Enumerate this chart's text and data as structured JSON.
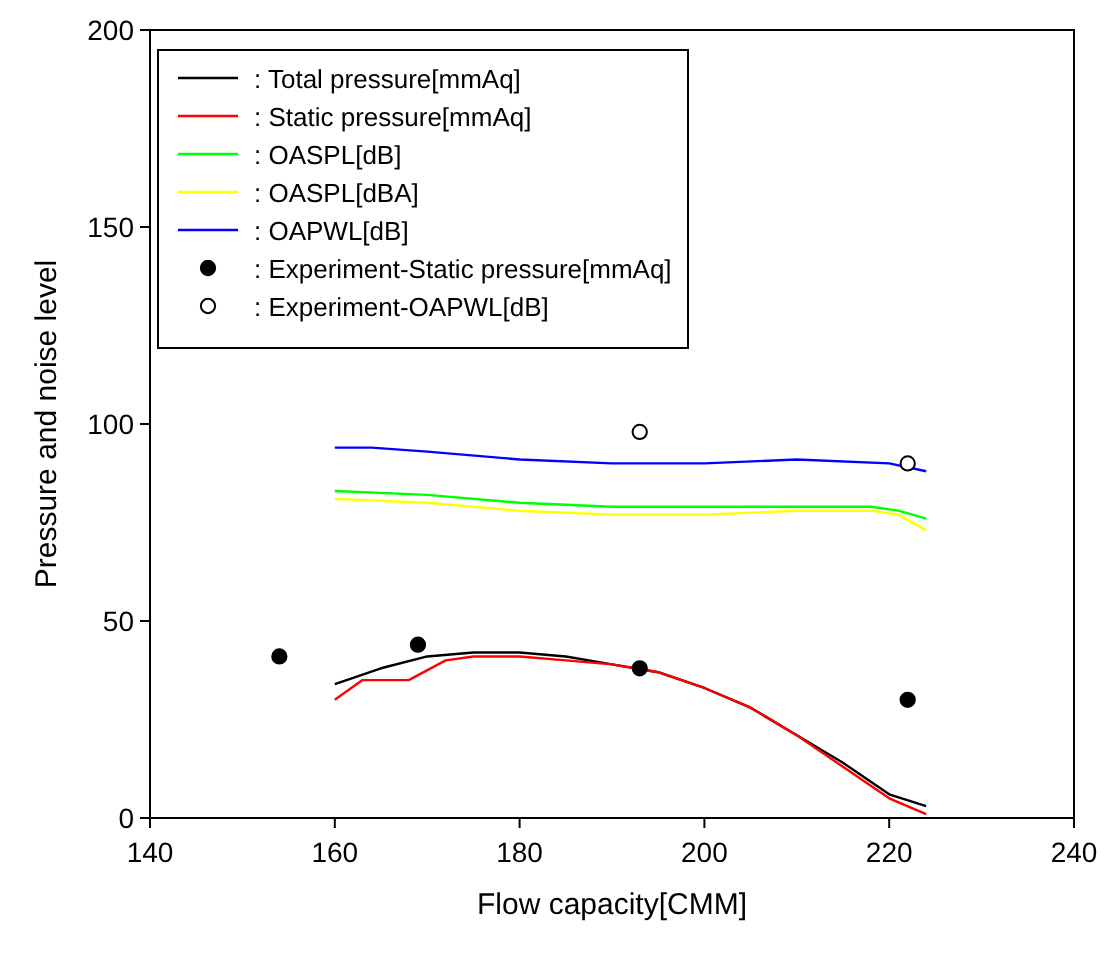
{
  "chart_data": {
    "type": "line",
    "xlabel": "Flow capacity[CMM]",
    "ylabel": "Pressure and noise level",
    "xlim": [
      140,
      240
    ],
    "ylim": [
      0,
      200
    ],
    "xticks": [
      140,
      160,
      180,
      200,
      220,
      240
    ],
    "yticks": [
      0,
      50,
      100,
      150,
      200
    ],
    "grid": false,
    "legend": "top left",
    "series": [
      {
        "name": ": Total pressure[mmAq]",
        "color": "#000000",
        "x": [
          160,
          165,
          170,
          175,
          180,
          185,
          190,
          195,
          200,
          205,
          210,
          215,
          220,
          224
        ],
        "values": [
          34,
          38,
          41,
          42,
          42,
          41,
          39,
          37,
          33,
          28,
          21,
          14,
          6,
          3
        ]
      },
      {
        "name": ": Static pressure[mmAq]",
        "color": "#ff0000",
        "x": [
          160,
          163,
          168,
          172,
          175,
          180,
          185,
          190,
          195,
          200,
          205,
          210,
          215,
          220,
          224
        ],
        "values": [
          30,
          35,
          35,
          40,
          41,
          41,
          40,
          39,
          37,
          33,
          28,
          21,
          13,
          5,
          1
        ]
      },
      {
        "name": ": OASPL[dB]",
        "color": "#00ff00",
        "x": [
          160,
          170,
          180,
          190,
          200,
          210,
          218,
          221,
          224
        ],
        "values": [
          83,
          82,
          80,
          79,
          79,
          79,
          79,
          78,
          76
        ]
      },
      {
        "name": ": OASPL[dBA]",
        "color": "#ffff00",
        "x": [
          160,
          170,
          180,
          190,
          200,
          210,
          218,
          221,
          224
        ],
        "values": [
          81,
          80,
          78,
          77,
          77,
          78,
          78,
          77,
          73
        ]
      },
      {
        "name": ": OAPWL[dB]",
        "color": "#0000ff",
        "x": [
          160,
          164,
          170,
          180,
          190,
          200,
          210,
          220,
          224
        ],
        "values": [
          94,
          94,
          93,
          91,
          90,
          90,
          91,
          90,
          88
        ]
      },
      {
        "name": ": Experiment-Static pressure[mmAq]",
        "type": "scatter",
        "marker": "circle",
        "color": "#000000",
        "x": [
          154,
          169,
          193,
          222
        ],
        "values": [
          41,
          44,
          38,
          30
        ]
      },
      {
        "name": ": Experiment-OAPWL[dB]",
        "type": "scatter",
        "marker": "circle",
        "color": "#ffffff",
        "x": [
          193,
          222
        ],
        "values": [
          98,
          90
        ]
      }
    ]
  }
}
